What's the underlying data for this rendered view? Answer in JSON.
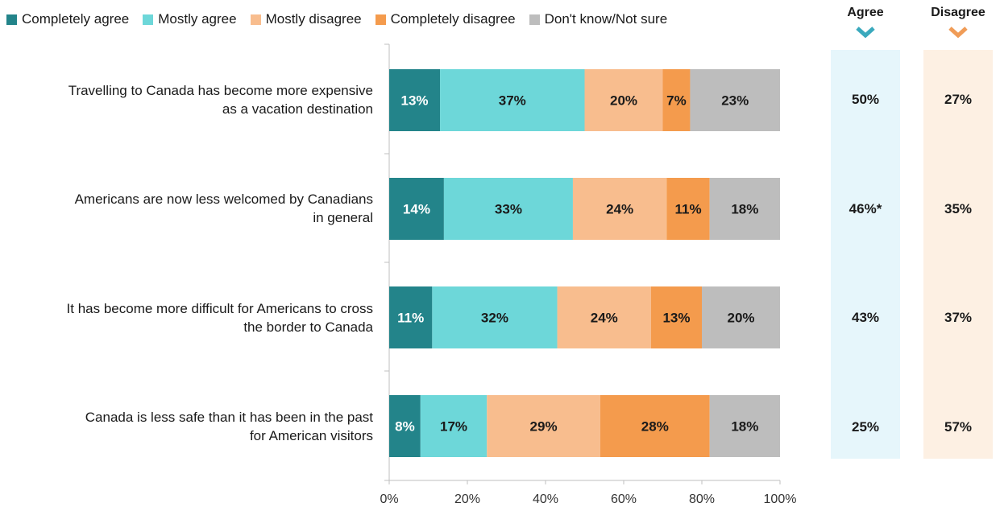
{
  "colors": {
    "completely_agree": "#23848a",
    "mostly_agree": "#6dd7d9",
    "mostly_disagree": "#f8bd8e",
    "completely_disagree": "#f49b4d",
    "dont_know": "#bdbdbd",
    "agree_column_bg": "#e6f6fb",
    "disagree_column_bg": "#fdf0e3",
    "agree_chevron": "#3aa9bd",
    "disagree_chevron": "#f09c57"
  },
  "legend": [
    {
      "label": "Completely agree"
    },
    {
      "label": "Mostly agree"
    },
    {
      "label": "Mostly disagree"
    },
    {
      "label": "Completely disagree"
    },
    {
      "label": "Don't know/Not sure"
    }
  ],
  "summary": {
    "agree_header": "Agree",
    "disagree_header": "Disagree",
    "chevron_icon": "chevron-down-icon",
    "rows": [
      {
        "agree": "50%",
        "disagree": "27%"
      },
      {
        "agree": "46%*",
        "disagree": "35%"
      },
      {
        "agree": "43%",
        "disagree": "37%"
      },
      {
        "agree": "25%",
        "disagree": "57%"
      }
    ]
  },
  "chart_data": {
    "type": "bar",
    "orientation": "horizontal",
    "stacked": true,
    "categories": [
      [
        "Travelling to Canada has become more expensive",
        "as a vacation destination"
      ],
      [
        "Americans are now less welcomed by Canadians",
        "in general"
      ],
      [
        "It has become more difficult for Americans to cross",
        "the border to Canada"
      ],
      [
        "Canada is less safe than it has been in the past",
        "for American visitors"
      ]
    ],
    "series": [
      {
        "name": "Completely agree",
        "values": [
          13,
          14,
          11,
          8
        ],
        "labels": [
          "13%",
          "14%",
          "11%",
          "8%"
        ]
      },
      {
        "name": "Mostly agree",
        "values": [
          37,
          33,
          32,
          17
        ],
        "labels": [
          "37%",
          "33%",
          "32%",
          "17%"
        ]
      },
      {
        "name": "Mostly disagree",
        "values": [
          20,
          24,
          24,
          29
        ],
        "labels": [
          "20%",
          "24%",
          "24%",
          "29%"
        ]
      },
      {
        "name": "Completely disagree",
        "values": [
          7,
          11,
          13,
          28
        ],
        "labels": [
          "7%",
          "11%",
          "13%",
          "28%"
        ]
      },
      {
        "name": "Don't know/Not sure",
        "values": [
          23,
          18,
          20,
          18
        ],
        "labels": [
          "23%",
          "18%",
          "20%",
          "18%"
        ]
      }
    ],
    "xlim": [
      0,
      100
    ],
    "xticks": [
      "0%",
      "20%",
      "40%",
      "60%",
      "80%",
      "100%"
    ],
    "grid": false,
    "legend_position": "top"
  }
}
